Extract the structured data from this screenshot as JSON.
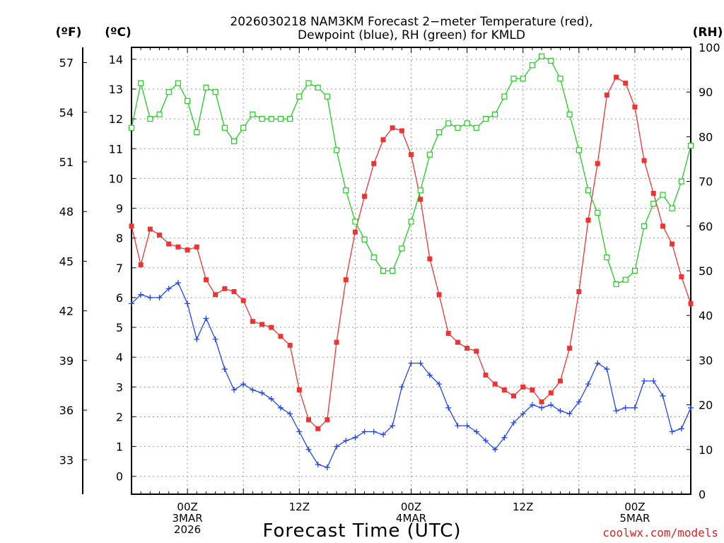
{
  "chart_data": {
    "type": "line",
    "title_lines": [
      "2026030218 NAM3KM Forecast 2−meter Temperature (red),",
      "Dewpoint (blue), RH (green) for KMLD"
    ],
    "xlabel": "Forecast Time (UTC)",
    "credit": "coolwx.com/models",
    "unit_labels": {
      "fahrenheit": "(ºF)",
      "celsius": "(ºC)",
      "rh": "(RH)"
    },
    "celsius_axis": {
      "ylim": [
        -0.6,
        14.4
      ],
      "ticks": [
        0,
        1,
        2,
        3,
        4,
        5,
        6,
        7,
        8,
        9,
        10,
        11,
        12,
        13,
        14
      ]
    },
    "fahrenheit_axis": {
      "ticks": [
        33,
        36,
        39,
        42,
        45,
        48,
        51,
        54,
        57
      ]
    },
    "rh_axis": {
      "ylim": [
        0,
        100
      ],
      "ticks": [
        0,
        10,
        20,
        30,
        40,
        50,
        60,
        70,
        80,
        90,
        100
      ]
    },
    "x_hours": {
      "start": 18,
      "end": 78,
      "step": 1
    },
    "time_ticks": [
      {
        "hour": 24,
        "lines": [
          "00Z",
          "3MAR",
          "2026"
        ]
      },
      {
        "hour": 36,
        "lines": [
          "12Z"
        ]
      },
      {
        "hour": 48,
        "lines": [
          "00Z",
          "4MAR"
        ]
      },
      {
        "hour": 60,
        "lines": [
          "12Z"
        ]
      },
      {
        "hour": 72,
        "lines": [
          "00Z",
          "5MAR"
        ]
      }
    ],
    "series": [
      {
        "name": "Temperature",
        "unit": "C",
        "color": "#ee3333",
        "marker": "filled-square",
        "values": [
          8.4,
          7.1,
          8.3,
          8.1,
          7.8,
          7.7,
          7.6,
          7.7,
          6.6,
          6.1,
          6.3,
          6.2,
          5.9,
          5.2,
          5.1,
          5.0,
          4.7,
          4.4,
          2.9,
          1.9,
          1.6,
          1.9,
          4.5,
          6.6,
          8.2,
          9.4,
          10.5,
          11.3,
          11.7,
          11.6,
          10.8,
          9.3,
          7.3,
          6.1,
          4.8,
          4.5,
          4.3,
          4.2,
          3.4,
          3.1,
          2.9,
          2.7,
          3.0,
          2.9,
          2.5,
          2.8,
          3.2,
          4.3,
          6.2,
          8.6,
          10.5,
          12.8,
          13.4,
          13.2,
          12.4,
          10.6,
          9.5,
          8.4,
          7.8,
          6.7,
          5.8
        ]
      },
      {
        "name": "Dewpoint",
        "unit": "C",
        "color": "#2244ee",
        "marker": "plus",
        "values": [
          5.8,
          6.1,
          6.0,
          6.0,
          6.3,
          6.5,
          5.8,
          4.6,
          5.3,
          4.6,
          3.6,
          2.9,
          3.1,
          2.9,
          2.8,
          2.6,
          2.3,
          2.1,
          1.5,
          0.9,
          0.4,
          0.3,
          1.0,
          1.2,
          1.3,
          1.5,
          1.5,
          1.4,
          1.7,
          3.0,
          3.8,
          3.8,
          3.4,
          3.1,
          2.3,
          1.7,
          1.7,
          1.5,
          1.2,
          0.9,
          1.3,
          1.8,
          2.1,
          2.4,
          2.3,
          2.4,
          2.2,
          2.1,
          2.5,
          3.1,
          3.8,
          3.6,
          2.2,
          2.3,
          2.3,
          3.2,
          3.2,
          2.7,
          1.5,
          1.6,
          2.3
        ]
      },
      {
        "name": "RH",
        "unit": "%",
        "color": "#22cc22",
        "marker": "open-square",
        "values": [
          82,
          92,
          84,
          85,
          90,
          92,
          88,
          81,
          91,
          90,
          82,
          79,
          82,
          85,
          84,
          84,
          84,
          84,
          89,
          92,
          91,
          89,
          77,
          68,
          61,
          57,
          53,
          50,
          50,
          55,
          61,
          68,
          76,
          81,
          83,
          82,
          83,
          82,
          84,
          85,
          89,
          93,
          93,
          96,
          98,
          97,
          93,
          85,
          77,
          68,
          63,
          53,
          47,
          48,
          50,
          60,
          65,
          67,
          64,
          70,
          78
        ]
      }
    ]
  }
}
